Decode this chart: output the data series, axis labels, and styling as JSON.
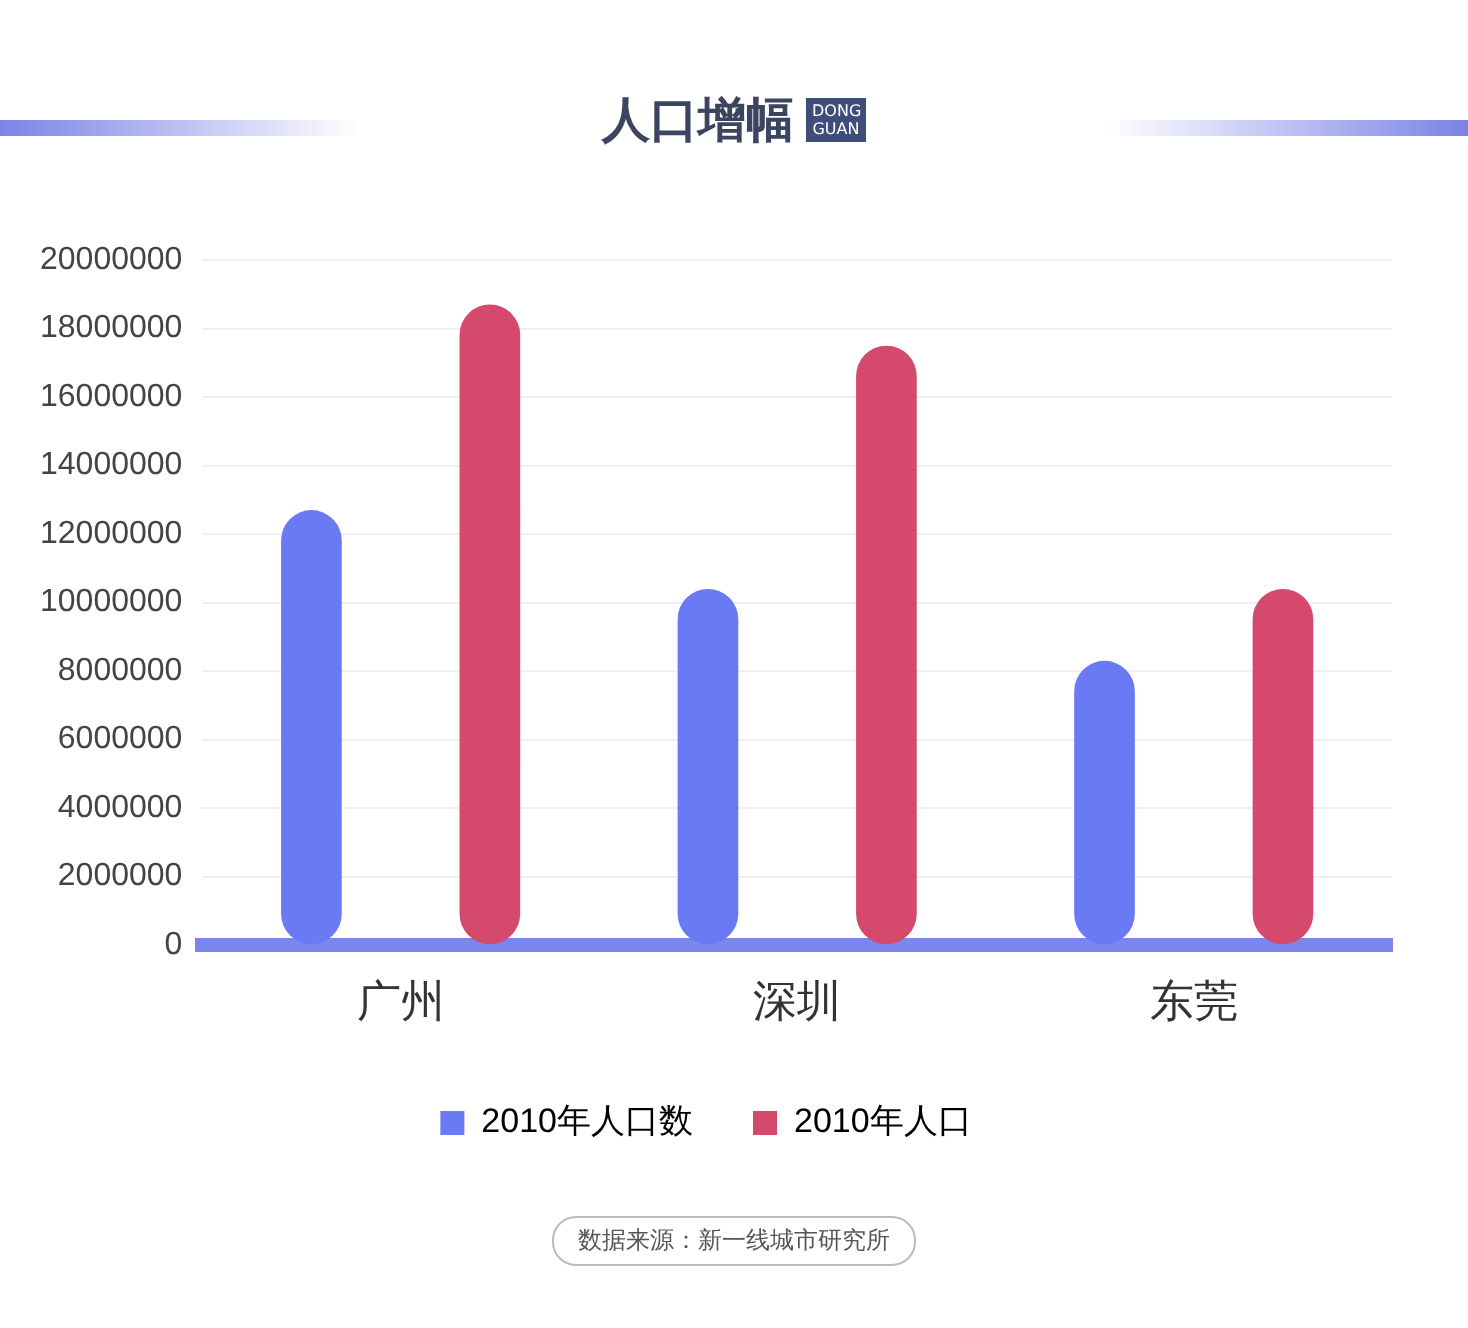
{
  "chart_data": {
    "type": "bar",
    "title": "人口增幅",
    "subtitle": "DONG GUAN",
    "categories": [
      "广州",
      "深圳",
      "东莞"
    ],
    "series": [
      {
        "name": "2010年人口数",
        "color": "#6a7af5",
        "values": [
          12700000,
          10400000,
          8300000
        ]
      },
      {
        "name": "2010年人口",
        "color": "#d4496c",
        "values": [
          18700000,
          17500000,
          10400000
        ]
      }
    ],
    "ylim": [
      0,
      20000000
    ],
    "yticks": [
      0,
      2000000,
      4000000,
      6000000,
      8000000,
      10000000,
      12000000,
      14000000,
      16000000,
      18000000,
      20000000
    ],
    "grid": "y",
    "legend": "bottom",
    "annotations": [
      "数据来源：新一线城市研究所"
    ]
  }
}
